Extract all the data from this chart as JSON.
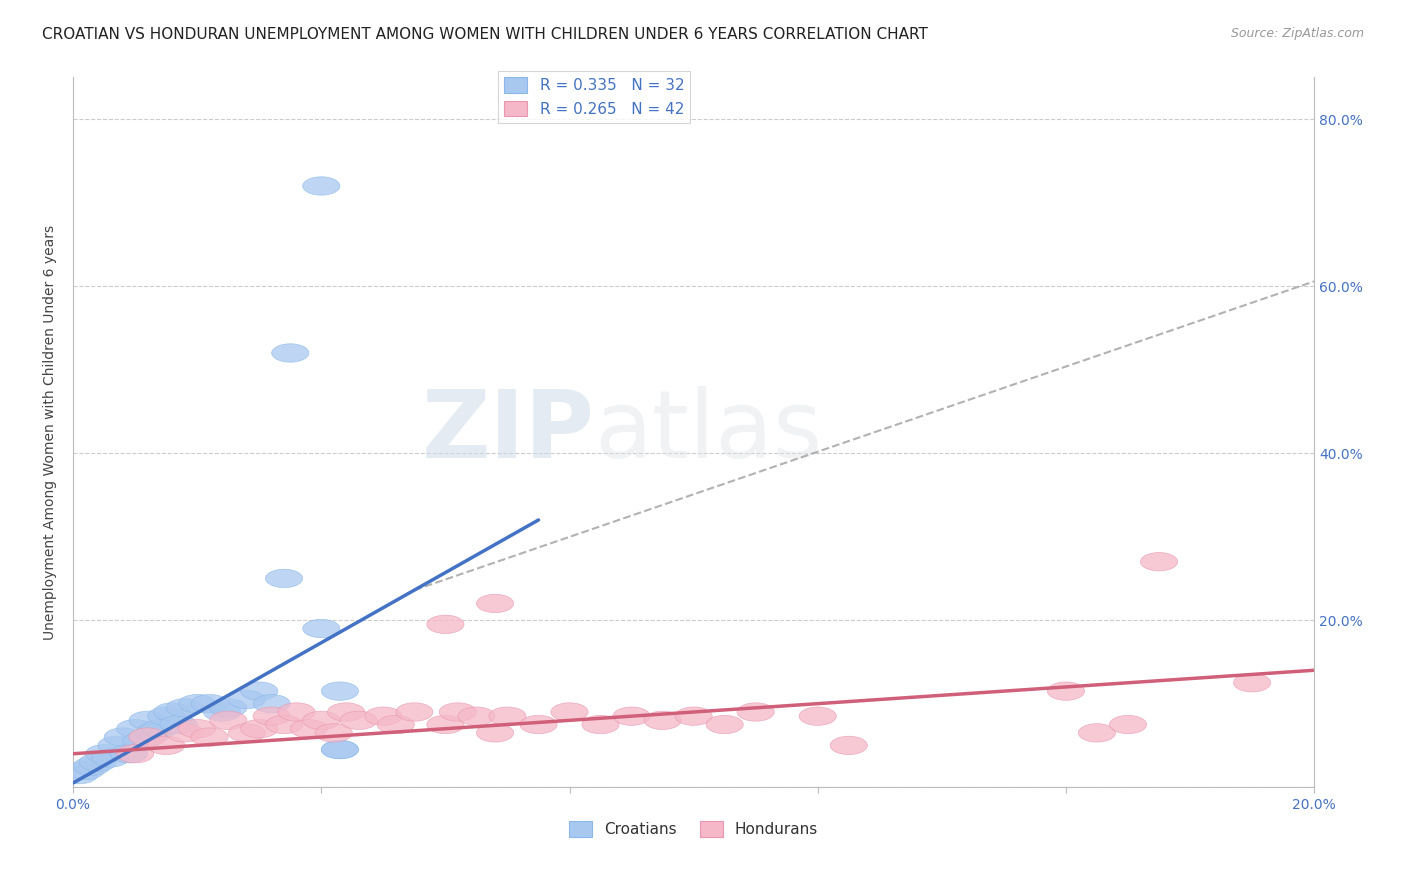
{
  "title": "CROATIAN VS HONDURAN UNEMPLOYMENT AMONG WOMEN WITH CHILDREN UNDER 6 YEARS CORRELATION CHART",
  "source": "Source: ZipAtlas.com",
  "ylabel": "Unemployment Among Women with Children Under 6 years",
  "xlim": [
    0.0,
    0.2
  ],
  "ylim": [
    0.0,
    0.85
  ],
  "xtick_vals": [
    0.0,
    0.04,
    0.08,
    0.12,
    0.16,
    0.2
  ],
  "xtick_labels": [
    "0.0%",
    "",
    "",
    "",
    "",
    "20.0%"
  ],
  "ytick_vals": [
    0.0,
    0.2,
    0.4,
    0.6,
    0.8
  ],
  "ytick_labels_right": [
    "",
    "20.0%",
    "40.0%",
    "60.0%",
    "80.0%"
  ],
  "legend_cr_label": "R = 0.335   N = 32",
  "legend_ho_label": "R = 0.265   N = 42",
  "croatian_color": "#a8c8f0",
  "honduran_color": "#f5b8c8",
  "croatian_line_color": "#4472c4",
  "honduran_line_color": "#d0607a",
  "dashed_line_color": "#aaaaaa",
  "background_color": "#ffffff",
  "grid_color": "#cccccc",
  "watermark_text": "ZIPatlas",
  "watermark_color": "#e0e8f0",
  "title_fontsize": 11,
  "ylabel_fontsize": 10,
  "tick_fontsize": 10,
  "legend_fontsize": 11,
  "croatian_points": [
    [
      0.001,
      0.015
    ],
    [
      0.002,
      0.02
    ],
    [
      0.003,
      0.025
    ],
    [
      0.004,
      0.03
    ],
    [
      0.005,
      0.04
    ],
    [
      0.006,
      0.035
    ],
    [
      0.007,
      0.05
    ],
    [
      0.008,
      0.06
    ],
    [
      0.009,
      0.04
    ],
    [
      0.01,
      0.07
    ],
    [
      0.011,
      0.055
    ],
    [
      0.012,
      0.08
    ],
    [
      0.013,
      0.065
    ],
    [
      0.014,
      0.07
    ],
    [
      0.015,
      0.085
    ],
    [
      0.016,
      0.09
    ],
    [
      0.017,
      0.075
    ],
    [
      0.018,
      0.095
    ],
    [
      0.02,
      0.1
    ],
    [
      0.022,
      0.1
    ],
    [
      0.024,
      0.09
    ],
    [
      0.025,
      0.095
    ],
    [
      0.028,
      0.105
    ],
    [
      0.03,
      0.115
    ],
    [
      0.032,
      0.1
    ],
    [
      0.034,
      0.25
    ],
    [
      0.04,
      0.19
    ],
    [
      0.043,
      0.115
    ],
    [
      0.043,
      0.045
    ],
    [
      0.043,
      0.045
    ],
    [
      0.035,
      0.52
    ],
    [
      0.04,
      0.72
    ]
  ],
  "honduran_points": [
    [
      0.01,
      0.04
    ],
    [
      0.012,
      0.06
    ],
    [
      0.015,
      0.05
    ],
    [
      0.018,
      0.065
    ],
    [
      0.02,
      0.07
    ],
    [
      0.022,
      0.06
    ],
    [
      0.025,
      0.08
    ],
    [
      0.028,
      0.065
    ],
    [
      0.03,
      0.07
    ],
    [
      0.032,
      0.085
    ],
    [
      0.034,
      0.075
    ],
    [
      0.036,
      0.09
    ],
    [
      0.038,
      0.07
    ],
    [
      0.04,
      0.08
    ],
    [
      0.042,
      0.065
    ],
    [
      0.044,
      0.09
    ],
    [
      0.046,
      0.08
    ],
    [
      0.05,
      0.085
    ],
    [
      0.052,
      0.075
    ],
    [
      0.055,
      0.09
    ],
    [
      0.06,
      0.075
    ],
    [
      0.062,
      0.09
    ],
    [
      0.065,
      0.085
    ],
    [
      0.068,
      0.065
    ],
    [
      0.07,
      0.085
    ],
    [
      0.075,
      0.075
    ],
    [
      0.08,
      0.09
    ],
    [
      0.085,
      0.075
    ],
    [
      0.09,
      0.085
    ],
    [
      0.095,
      0.08
    ],
    [
      0.1,
      0.085
    ],
    [
      0.105,
      0.075
    ],
    [
      0.11,
      0.09
    ],
    [
      0.12,
      0.085
    ],
    [
      0.125,
      0.05
    ],
    [
      0.06,
      0.195
    ],
    [
      0.068,
      0.22
    ],
    [
      0.165,
      0.065
    ],
    [
      0.17,
      0.075
    ],
    [
      0.175,
      0.27
    ],
    [
      0.16,
      0.115
    ],
    [
      0.19,
      0.125
    ]
  ],
  "blue_line_x": [
    0.0,
    0.075
  ],
  "blue_line_y_start": 0.005,
  "blue_line_slope": 4.2,
  "dashed_line_x": [
    0.055,
    0.2
  ],
  "dashed_line_y_start_offset": 0.05,
  "dashed_line_slope": 2.55,
  "pink_line_x": [
    0.0,
    0.2
  ],
  "pink_line_y_start": 0.04,
  "pink_line_slope": 0.5
}
